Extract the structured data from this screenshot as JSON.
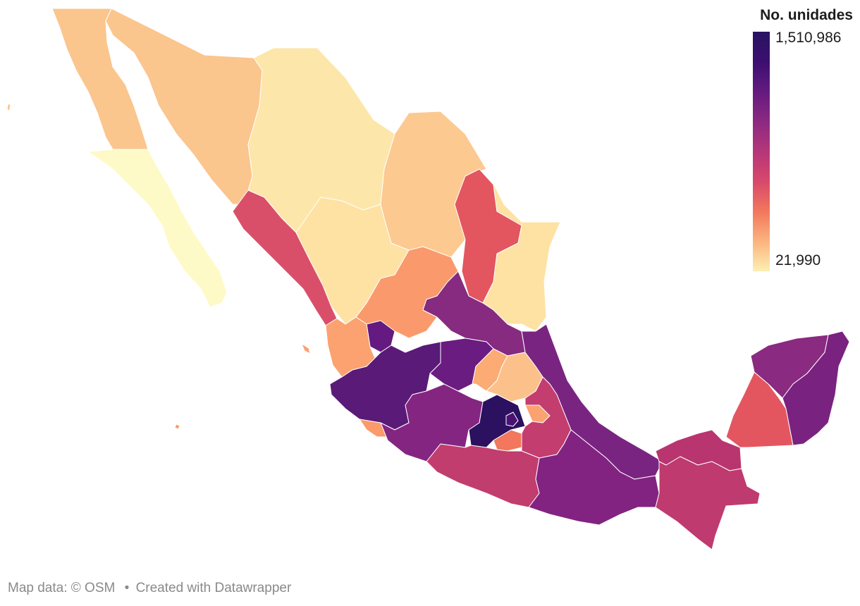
{
  "legend": {
    "title": "No. unidades",
    "max_label": "1,510,986",
    "min_label": "21,990",
    "max_value": 1510986,
    "min_value": 21990,
    "scale_colors": [
      "#fcefb3",
      "#fbb47e",
      "#f2775c",
      "#d8486b",
      "#b5367a",
      "#8c2981",
      "#641a80",
      "#3b0f70",
      "#291362"
    ]
  },
  "attribution": {
    "map_data": "Map data: © OSM",
    "separator": "•",
    "created_with": "Created with Datawrapper"
  },
  "map": {
    "type": "choropleth",
    "region": "Mexico states",
    "state_colors": {
      "baja-california": "#fbc58e",
      "baja-california-sur": "#fefac8",
      "sonora": "#fbc58e",
      "chihuahua": "#fde6a9",
      "coahuila": "#fcc991",
      "nuevo-leon": "#e35660",
      "tamaulipas": "#fde2a4",
      "sinaloa": "#d94f69",
      "durango": "#fde2a4",
      "zacatecas": "#fa9a6c",
      "aguascalientes": "#641a80",
      "san-luis-potosi": "#862b7f",
      "nayarit": "#fba270",
      "jalisco": "#5a1a78",
      "guanajuato": "#6a1c81",
      "queretaro": "#fbab73",
      "hidalgo": "#fcc18a",
      "veracruz": "#7a2482",
      "colima": "#fb9a6b",
      "michoacan": "#842681",
      "mexico": "#2b1160",
      "cdmx": "#4a1273",
      "morelos": "#f2775c",
      "tlaxcala": "#fba270",
      "puebla": "#c43d6f",
      "guerrero": "#c13d6e",
      "oaxaca": "#822381",
      "tabasco": "#b9356f",
      "chiapas": "#bf3a6e",
      "campeche": "#e35660",
      "yucatan": "#8a2a80",
      "quintana-roo": "#7a2280"
    }
  }
}
